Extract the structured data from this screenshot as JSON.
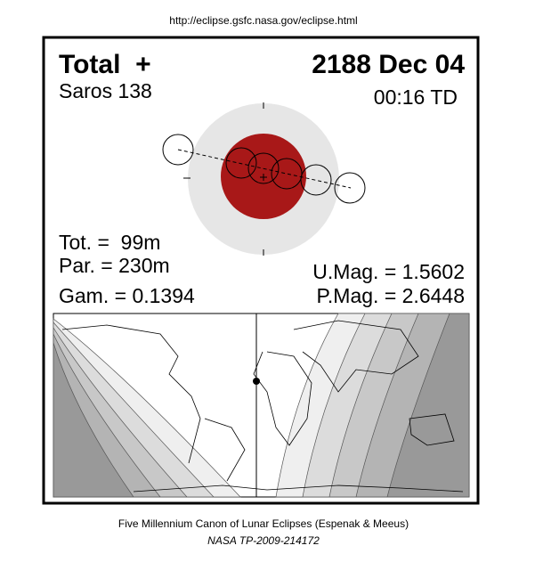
{
  "header": {
    "url": "http://eclipse.gsfc.nasa.gov/eclipse.html"
  },
  "eclipse": {
    "type": "Total  +",
    "date": "2188 Dec 04",
    "saros": "Saros 138",
    "time": "00:16 TD",
    "total_duration": "Tot. =  99m",
    "partial_duration": "Par. = 230m",
    "gamma": "Gam. = 0.1394",
    "umbral_magnitude": "U.Mag. = 1.5602",
    "penumbral_magnitude": "P.Mag. = 2.6448"
  },
  "footer": {
    "caption": "Five Millennium Canon of Lunar Eclipses (Espenak & Meeus)",
    "reference": "NASA TP-2009-214172"
  }
}
